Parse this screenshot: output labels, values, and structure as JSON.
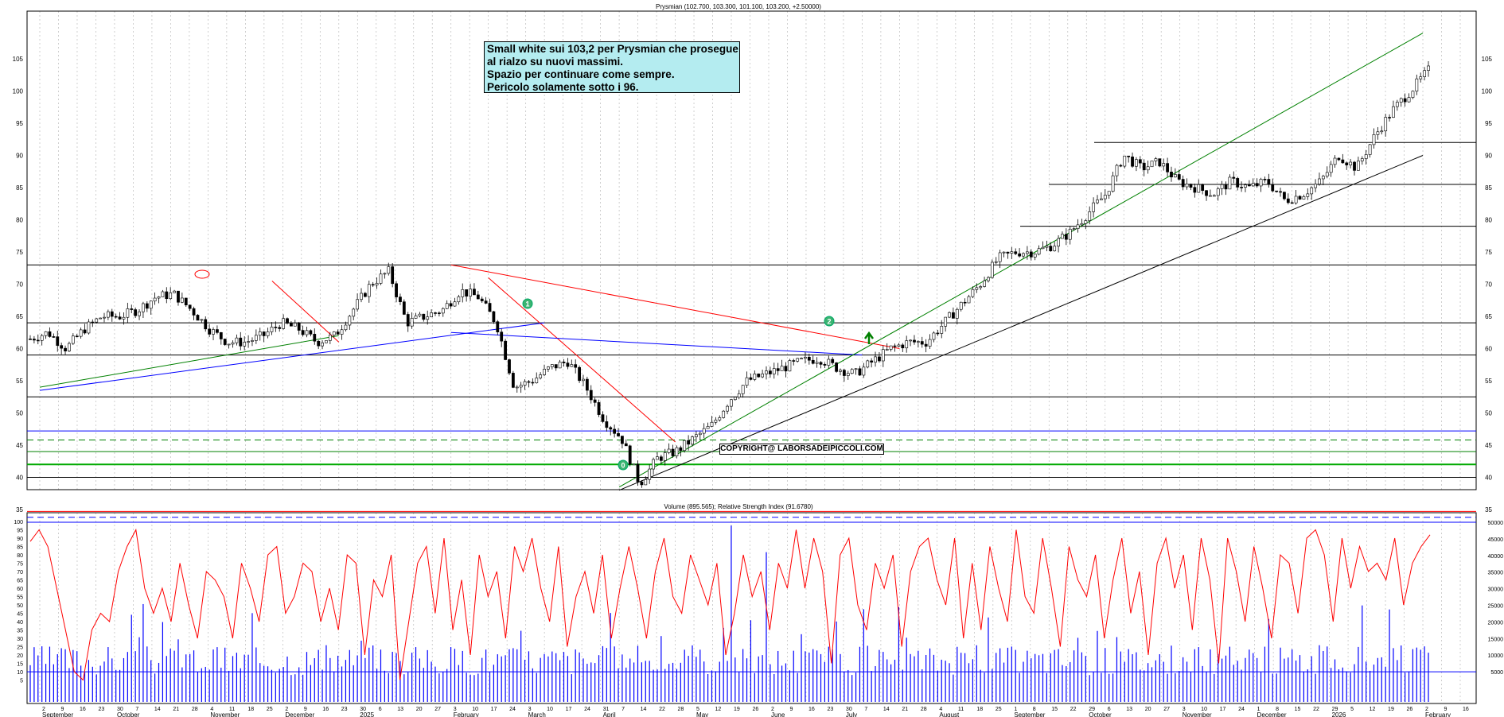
{
  "header": {
    "title": "Prysmian (102.700, 103.300, 101.100, 103.200, +2.50000)",
    "lower_title": "Volume (895.565); Relative Strength Index (91.6780)"
  },
  "note": {
    "lines": [
      "Small white sui 103,2 per Prysmian che prosegue",
      "al rialzo su nuovi massimi.",
      "Spazio per continuare come sempre.",
      "Pericolo solamente sotto i 96."
    ]
  },
  "copyright": "COPYRIGHT@ LABORSADEIPICCOLI.COM",
  "markers": [
    "0",
    "1",
    "2"
  ],
  "chart_data": [
    {
      "type": "candlestick",
      "title": "Prysmian (102.700, 103.300, 101.100, 103.200, +2.50000)",
      "last_bar": {
        "open": 102.7,
        "high": 103.3,
        "low": 101.1,
        "close": 103.2,
        "change": 2.5
      },
      "ylim": [
        32,
        107
      ],
      "y_ticks": [
        35,
        40,
        45,
        50,
        55,
        60,
        65,
        70,
        75,
        80,
        85,
        90,
        95,
        100,
        105
      ],
      "x_day_ticks": [
        "2",
        "9",
        "16",
        "23",
        "30",
        "7",
        "14",
        "21",
        "28",
        "4",
        "11",
        "18",
        "25",
        "2",
        "9",
        "16",
        "23",
        "30",
        "6",
        "13",
        "20",
        "27",
        "3",
        "10",
        "17",
        "24",
        "3",
        "10",
        "17",
        "24",
        "31",
        "7",
        "14",
        "22",
        "28",
        "5",
        "12",
        "19",
        "26",
        "2",
        "9",
        "16",
        "23",
        "30",
        "7",
        "14",
        "21",
        "28",
        "4",
        "11",
        "18",
        "25",
        "1",
        "8",
        "15",
        "22",
        "29",
        "6",
        "13",
        "20",
        "27",
        "3",
        "10",
        "17",
        "24",
        "1",
        "8",
        "15",
        "22",
        "29",
        "5",
        "12",
        "19",
        "26",
        "2",
        "9",
        "16"
      ],
      "x_month_labels": [
        "September",
        "October",
        "November",
        "December",
        "2025",
        "February",
        "March",
        "April",
        "May",
        "June",
        "July",
        "August",
        "September",
        "October",
        "November",
        "December",
        "2026",
        "February"
      ],
      "approx_closes": [
        61.5,
        62.5,
        60,
        63,
        65,
        65,
        66,
        68,
        68.5,
        66,
        63,
        61,
        61,
        62,
        64,
        63,
        61,
        62,
        66,
        70,
        72,
        64,
        65,
        66,
        69,
        68,
        64,
        54,
        55,
        57,
        58,
        54,
        49,
        46,
        39,
        43,
        44,
        46,
        48,
        52,
        55,
        56,
        57,
        58,
        58.5,
        57,
        56,
        58,
        60,
        61,
        61,
        64,
        67,
        70,
        74,
        75,
        75,
        76,
        78,
        81,
        84,
        90,
        88,
        89,
        86,
        85,
        84,
        86,
        85,
        86,
        83,
        84,
        86,
        90,
        88,
        93,
        97,
        100,
        103.2
      ],
      "horizontal_lines": [
        92,
        85.5,
        79,
        73,
        64,
        59,
        52.5,
        47.2,
        45.8,
        44,
        42,
        40,
        34.7,
        33.8
      ],
      "trendlines": [
        {
          "color": "#ff0000",
          "from": [
            "Nov 28 2024",
            70.5
          ],
          "to": [
            "Dec 23 2024",
            61
          ]
        },
        {
          "color": "#ff0000",
          "from": [
            "Feb 3 2025",
            73
          ],
          "to": [
            "Jul 21 2025",
            60
          ]
        },
        {
          "color": "#ff0000",
          "from": [
            "Feb 17 2025",
            71
          ],
          "to": [
            "Apr 28 2025",
            45.5
          ]
        },
        {
          "color": "#0000ff",
          "from": [
            "Sep 2 2024",
            53.5
          ],
          "to": [
            "Mar 10 2025",
            64
          ]
        },
        {
          "color": "#0000ff",
          "from": [
            "Feb 3 2025",
            62.5
          ],
          "to": [
            "Jul 7 2025",
            59
          ]
        },
        {
          "color": "#008000",
          "from": [
            "Sep 2 2024",
            54
          ],
          "to": [
            "Dec 23 2024",
            62
          ]
        },
        {
          "color": "#008000",
          "from": [
            "Apr 7 2025",
            38.5
          ],
          "to": [
            "Feb 2 2026",
            109
          ]
        },
        {
          "color": "#000000",
          "from": [
            "Apr 7 2025",
            38
          ],
          "to": [
            "Feb 2 2026",
            90
          ]
        }
      ]
    },
    {
      "type": "bar+line",
      "title": "Volume (895.565); Relative Strength Index (91.6780)",
      "series": [
        {
          "name": "Volume",
          "color": "#0000ff",
          "last": 895.565
        },
        {
          "name": "Relative Strength Index",
          "color": "#ff0000",
          "last": 91.678
        }
      ],
      "left_ticks": [
        5,
        10,
        15,
        20,
        25,
        30,
        35,
        40,
        45,
        50,
        55,
        60,
        65,
        70,
        75,
        80,
        85,
        90,
        95,
        100
      ],
      "right_ticks": [
        5000,
        10000,
        15000,
        20000,
        25000,
        30000,
        35000,
        40000,
        45000,
        50000
      ],
      "rsi_values": [
        88,
        95,
        85,
        60,
        35,
        10,
        5,
        35,
        45,
        40,
        70,
        85,
        95,
        60,
        45,
        60,
        40,
        75,
        50,
        30,
        70,
        65,
        55,
        30,
        75,
        60,
        40,
        80,
        85,
        45,
        55,
        75,
        70,
        40,
        60,
        35,
        80,
        75,
        20,
        65,
        55,
        80,
        5,
        40,
        75,
        85,
        45,
        90,
        35,
        65,
        20,
        80,
        55,
        70,
        30,
        85,
        70,
        90,
        60,
        40,
        85,
        25,
        55,
        70,
        45,
        80,
        30,
        60,
        85,
        60,
        30,
        70,
        90,
        55,
        45,
        80,
        65,
        50,
        75,
        20,
        45,
        80,
        55,
        70,
        35,
        75,
        60,
        95,
        60,
        90,
        70,
        15,
        80,
        90,
        50,
        35,
        75,
        60,
        80,
        25,
        70,
        85,
        90,
        65,
        50,
        90,
        30,
        75,
        35,
        85,
        60,
        40,
        95,
        55,
        45,
        90,
        60,
        25,
        85,
        65,
        55,
        80,
        30,
        65,
        90,
        45,
        70,
        20,
        75,
        90,
        60,
        80,
        35,
        90,
        65,
        15,
        90,
        70,
        40,
        85,
        60,
        30,
        80,
        75,
        45,
        90,
        95,
        80,
        40,
        90,
        60,
        85,
        70,
        75,
        65,
        90,
        50,
        75,
        85,
        92
      ]
    }
  ]
}
